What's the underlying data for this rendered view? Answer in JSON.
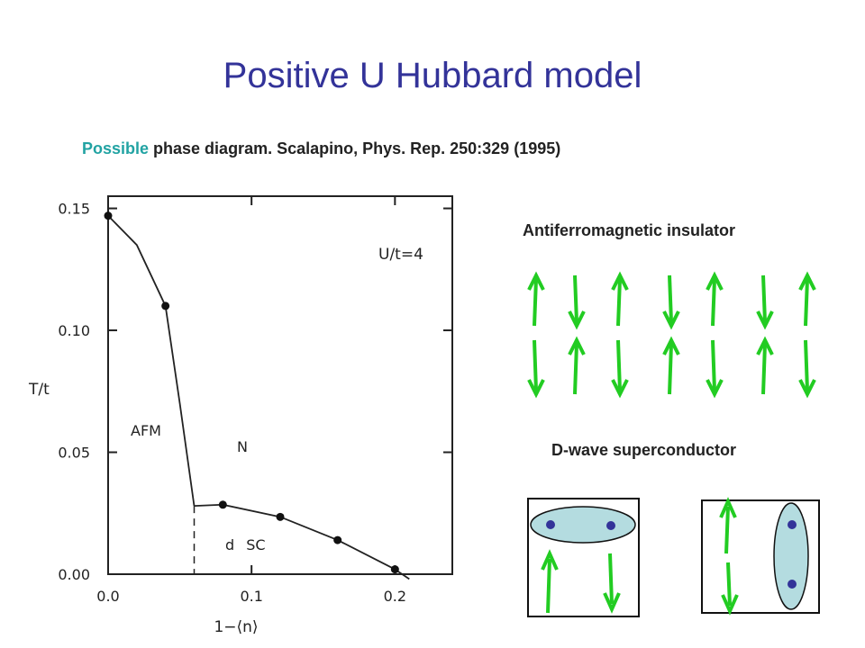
{
  "slide": {
    "title": "Positive U Hubbard model",
    "subtitle_accent": "Possible",
    "subtitle_rest": " phase diagram. Scalapino, Phys. Rep. 250:329 (1995)",
    "afm_label": "Antiferromagnetic insulator",
    "dsc_label": "D-wave superconductor"
  },
  "colors": {
    "title": "#333399",
    "accent": "#22a3a3",
    "arrow": "#22cc22",
    "electron": "#333399",
    "pair_fill": "#b4dce0"
  },
  "chart_data": {
    "type": "line",
    "xlabel": "1−⟨n⟩",
    "ylabel": "T/t",
    "annotation": "U/t=4",
    "region_labels": [
      "AFM",
      "N",
      "d SC"
    ],
    "xlim": [
      0.0,
      0.24
    ],
    "ylim": [
      0.0,
      0.155
    ],
    "x_ticks": [
      "0.0",
      "0.1",
      "0.2"
    ],
    "y_ticks": [
      "0.00",
      "0.05",
      "0.10",
      "0.15"
    ],
    "series": [
      {
        "role": "afm-boundary",
        "x": [
          0.0,
          0.02,
          0.04,
          0.05,
          0.06
        ],
        "y": [
          0.147,
          0.135,
          0.11,
          0.07,
          0.028
        ]
      },
      {
        "role": "sc-boundary",
        "x": [
          0.06,
          0.08,
          0.12,
          0.16,
          0.2,
          0.21
        ],
        "y": [
          0.028,
          0.0285,
          0.0235,
          0.014,
          0.002,
          -0.002
        ]
      }
    ],
    "points": {
      "x": [
        0.0,
        0.04,
        0.08,
        0.12,
        0.16,
        0.2
      ],
      "y": [
        0.147,
        0.11,
        0.0285,
        0.0235,
        0.014,
        0.002
      ]
    },
    "dashed_x": 0.06
  },
  "afm_lattice": {
    "top_row": [
      "up",
      "down",
      "up",
      "down",
      "up",
      "down",
      "up"
    ],
    "bottom_row": [
      "down",
      "up",
      "down",
      "up",
      "down",
      "up",
      "down"
    ]
  }
}
